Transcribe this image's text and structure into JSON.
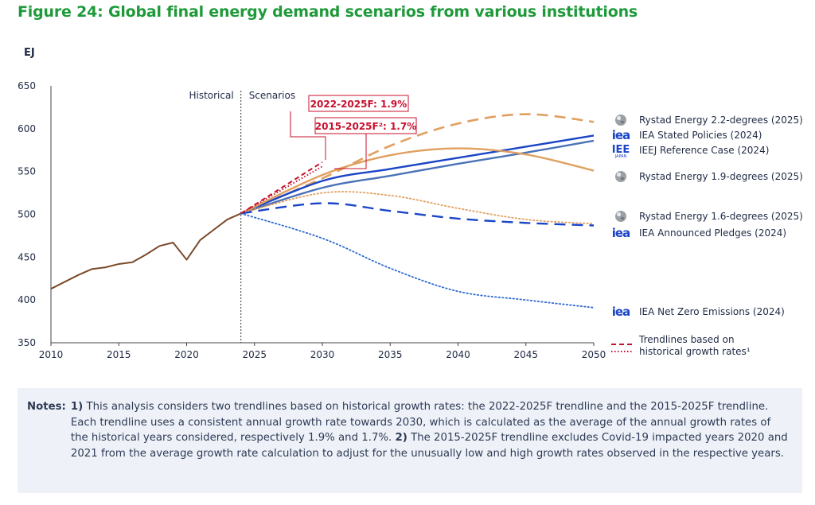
{
  "title": "Figure 24: Global final energy demand scenarios from various institutions",
  "chart_data": {
    "type": "line",
    "ylabel": "EJ",
    "xlim": [
      2010,
      2050
    ],
    "ylim": [
      350,
      650
    ],
    "x_ticks": [
      "2010",
      "2015",
      "2020",
      "2025",
      "2030",
      "2035",
      "2040",
      "2045",
      "2050"
    ],
    "y_ticks": [
      "350",
      "400",
      "450",
      "500",
      "550",
      "600",
      "650"
    ],
    "divider_x": 2024,
    "region_labels": {
      "left": "Historical",
      "right": "Scenarios"
    },
    "historical": {
      "x": [
        2010,
        2011,
        2012,
        2013,
        2014,
        2015,
        2016,
        2017,
        2018,
        2019,
        2020,
        2021,
        2022,
        2023,
        2024
      ],
      "y": [
        413,
        421,
        429,
        436,
        438,
        442,
        444,
        453,
        463,
        467,
        447,
        470,
        482,
        494,
        501
      ],
      "color": "#7a4a2a"
    },
    "series": [
      {
        "name": "Rystad Energy 2.2-degrees (2025)",
        "x": [
          2024,
          2030,
          2035,
          2040,
          2045,
          2050
        ],
        "y": [
          501,
          542,
          580,
          606,
          617,
          608
        ],
        "color": "#e0a060",
        "style": "dashed",
        "icon": "rystad-logo"
      },
      {
        "name": "IEA Stated Policies (2024)",
        "x": [
          2024,
          2030,
          2035,
          2040,
          2045,
          2050
        ],
        "y": [
          501,
          539,
          553,
          566,
          579,
          592
        ],
        "color": "#1a45c6",
        "style": "solid",
        "icon": "iea-logo"
      },
      {
        "name": "IEEJ Reference Case (2024)",
        "x": [
          2024,
          2030,
          2035,
          2040,
          2045,
          2050
        ],
        "y": [
          501,
          531,
          545,
          559,
          572,
          586
        ],
        "color": "#4a72b8",
        "style": "solid",
        "icon": "ieej-logo"
      },
      {
        "name": "Rystad Energy 1.9-degrees (2025)",
        "x": [
          2024,
          2030,
          2035,
          2040,
          2045,
          2050
        ],
        "y": [
          501,
          546,
          569,
          577,
          570,
          551
        ],
        "color": "#e0a060",
        "style": "solid",
        "icon": "rystad-logo"
      },
      {
        "name": "Rystad Energy 1.6-degrees (2025)",
        "x": [
          2024,
          2030,
          2035,
          2040,
          2045,
          2050
        ],
        "y": [
          501,
          525,
          522,
          507,
          494,
          489
        ],
        "color": "#e0a060",
        "style": "dotted",
        "icon": "rystad-logo"
      },
      {
        "name": "IEA Announced Pledges (2024)",
        "x": [
          2024,
          2030,
          2035,
          2040,
          2045,
          2050
        ],
        "y": [
          501,
          513,
          504,
          495,
          490,
          487
        ],
        "color": "#1a45c6",
        "style": "dashed",
        "icon": "iea-logo"
      },
      {
        "name": "IEA Net Zero Emissions (2024)",
        "x": [
          2024,
          2030,
          2035,
          2040,
          2045,
          2050
        ],
        "y": [
          501,
          472,
          437,
          410,
          400,
          391
        ],
        "color": "#2e6ad1",
        "style": "dotted",
        "icon": "iea-logo"
      }
    ],
    "trendlines": [
      {
        "label": "2022-2025F: 1.9%",
        "x": [
          2024,
          2030
        ],
        "y": [
          501,
          561
        ],
        "color": "#c8102e",
        "style": "dashed"
      },
      {
        "label": "2015-2025F²: 1.7%",
        "x": [
          2024,
          2030
        ],
        "y": [
          501,
          556
        ],
        "color": "#c8102e",
        "style": "dotted"
      }
    ],
    "trend_legend": {
      "line1": "Trendlines based on",
      "line2": "historical growth rates¹"
    },
    "icon_text": {
      "iea": "iea",
      "ieej": "IEE",
      "ieej_sub": "JAPAN"
    }
  },
  "notes": {
    "label": "Notes:",
    "p1_num": "1)",
    "p1": " This analysis considers two trendlines based on historical growth rates: the 2022-2025F trendline and the 2015-2025F trendline. Each trendline uses a consistent annual growth rate towards 2030, which is calculated as the average of the annual growth rates of the historical years considered, respectively 1.9% and 1.7%. ",
    "p2_num": "2)",
    "p2": " The 2015-2025F trendline excludes Covid-19 impacted years 2020 and 2021 from the average growth rate calculation to adjust for the unusually low and high growth rates observed in the respective years."
  }
}
